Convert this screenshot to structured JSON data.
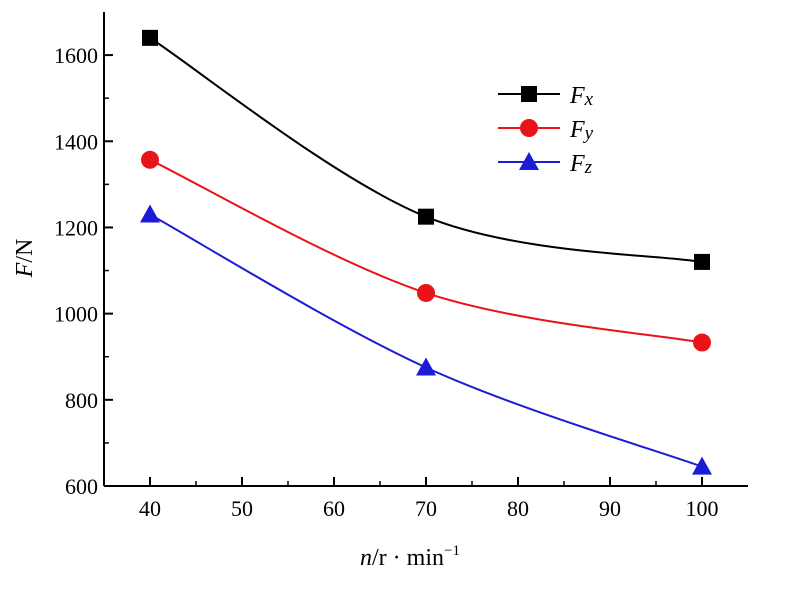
{
  "chart_data": {
    "type": "line",
    "xlabel": "n/r · min⁻¹",
    "xlabel_parts": {
      "var": "n",
      "unit": "/r · min",
      "exp": "−1"
    },
    "ylabel": "F/N",
    "ylabel_parts": {
      "var": "F",
      "unit": "/N"
    },
    "xlim": [
      35,
      105
    ],
    "ylim": [
      600,
      1700
    ],
    "x_ticks": [
      "40",
      "50",
      "60",
      "70",
      "80",
      "90",
      "100"
    ],
    "y_ticks": [
      "600",
      "800",
      "1000",
      "1200",
      "1400",
      "1600"
    ],
    "x": [
      40,
      70,
      100
    ],
    "series": [
      {
        "name": "Fx",
        "name_main": "F",
        "name_sub": "x",
        "color": "#000000",
        "marker": "square",
        "values": [
          1640,
          1225,
          1120
        ]
      },
      {
        "name": "Fy",
        "name_main": "F",
        "name_sub": "y",
        "color": "#e8141a",
        "marker": "circle",
        "values": [
          1357,
          1048,
          933
        ]
      },
      {
        "name": "Fz",
        "name_main": "F",
        "name_sub": "z",
        "color": "#1c1cd6",
        "marker": "triangle",
        "values": [
          1230,
          875,
          645
        ]
      }
    ],
    "legend_position": "top-right",
    "grid": false
  }
}
